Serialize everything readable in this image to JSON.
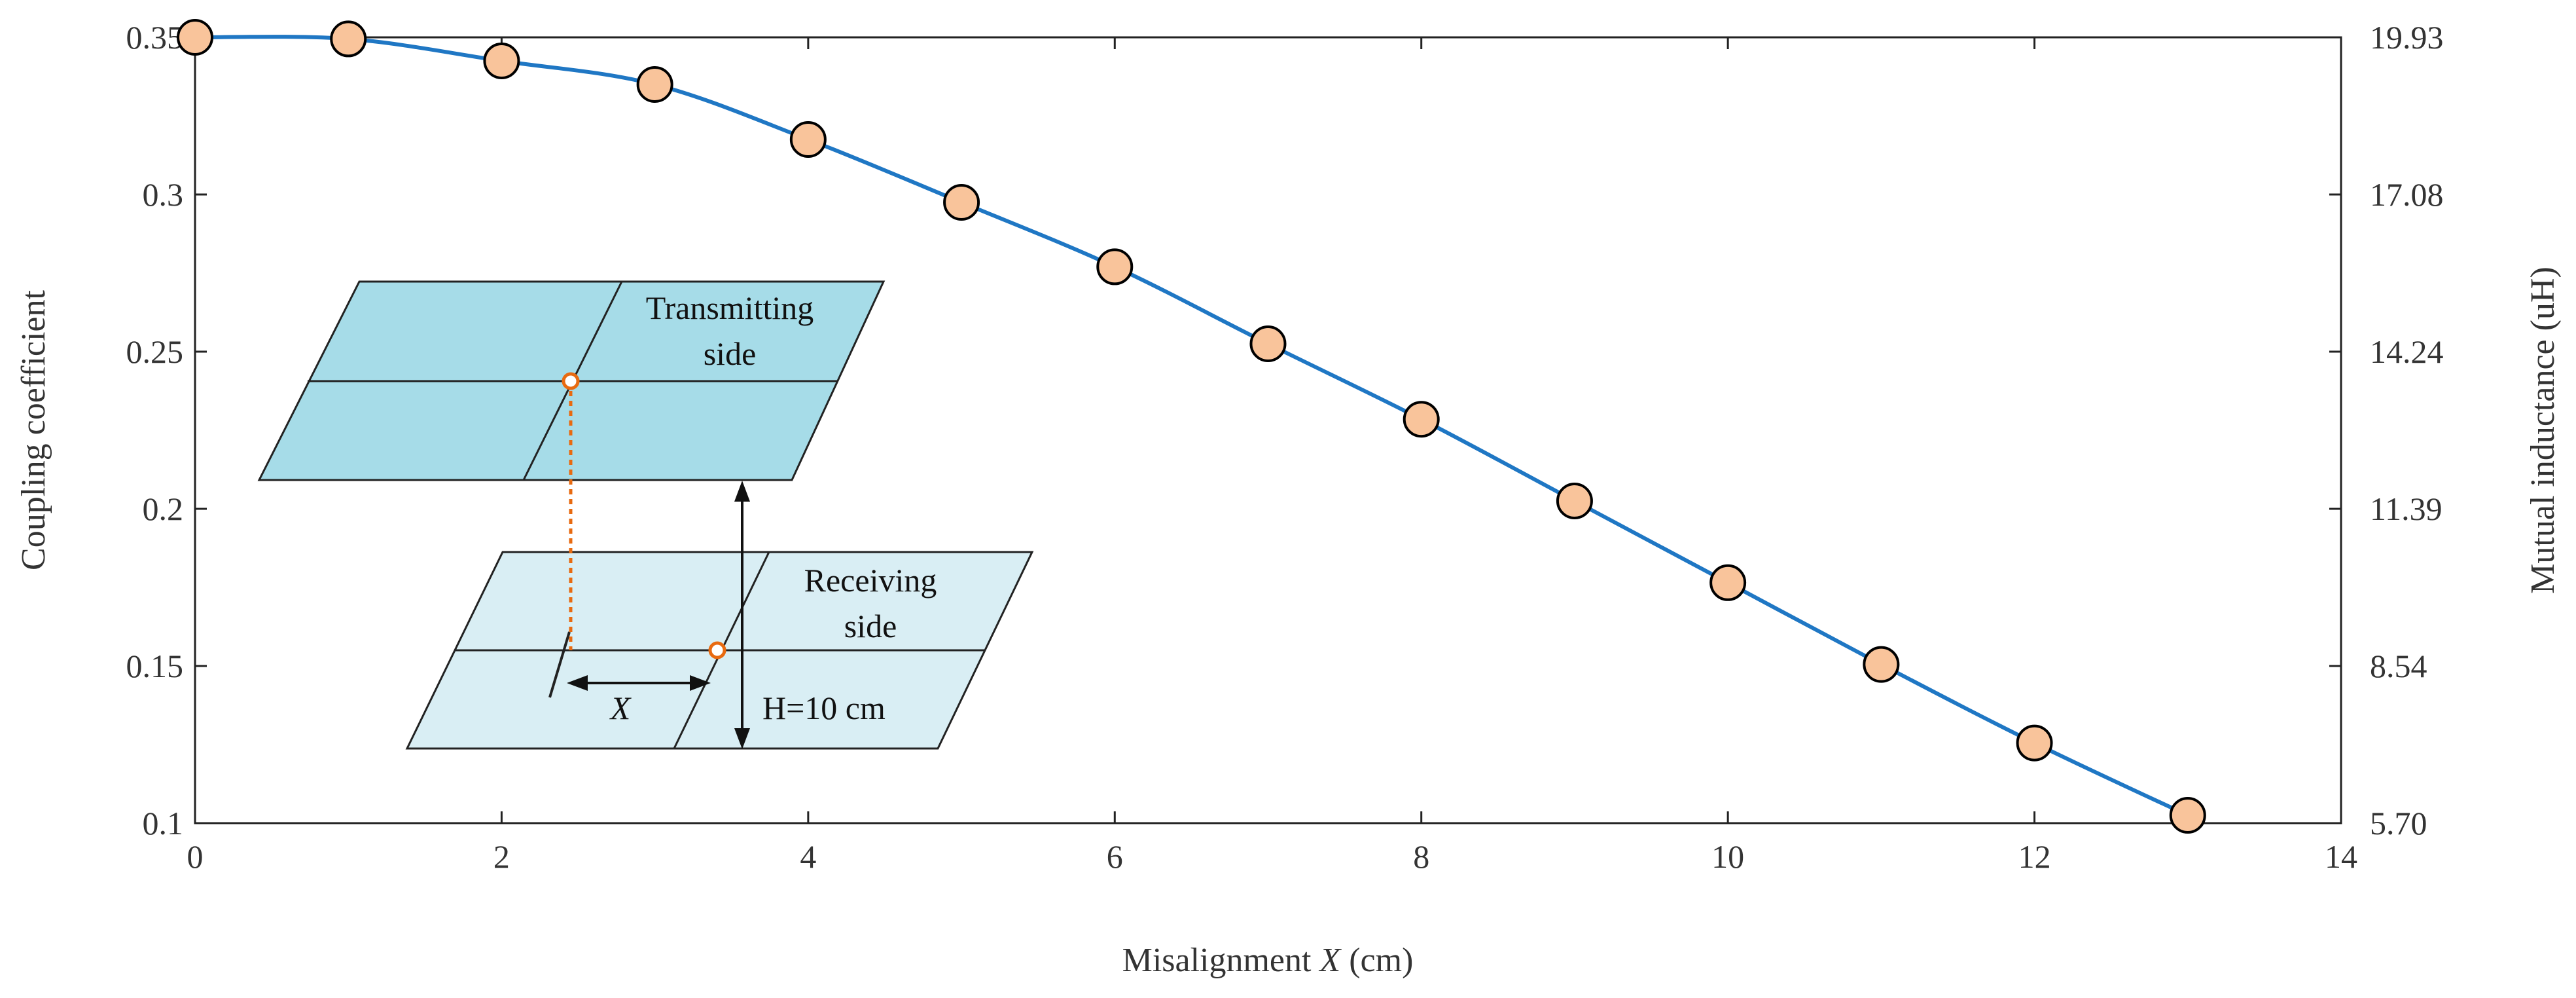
{
  "chart_data": {
    "type": "line",
    "title": "",
    "xlabel_prefix": "Misalignment ",
    "xlabel_var": "X",
    "xlabel_suffix": " (cm)",
    "ylabel": "Coupling coefficient",
    "y2label": "Mutual inductance (uH)",
    "xlim": [
      0,
      14
    ],
    "ylim": [
      0.1,
      0.35
    ],
    "xticks": [
      0,
      2,
      4,
      6,
      8,
      10,
      12,
      14
    ],
    "xtick_labels": [
      "0",
      "2",
      "4",
      "6",
      "8",
      "10",
      "12",
      "14"
    ],
    "yticks": [
      0.1,
      0.15,
      0.2,
      0.25,
      0.3,
      0.35
    ],
    "ytick_labels": [
      "0.1",
      "0.15",
      "0.2",
      "0.25",
      "0.3",
      "0.35"
    ],
    "y2tick_labels": [
      "5.70",
      "8.54",
      "11.39",
      "14.24",
      "17.08",
      "19.93"
    ],
    "grid": false,
    "series": [
      {
        "name": "Coupling coefficient",
        "x": [
          0,
          1,
          2,
          3,
          4,
          5,
          6,
          7,
          8,
          9,
          10,
          11,
          12,
          13
        ],
        "values": [
          0.35,
          0.3495,
          0.3425,
          0.335,
          0.3175,
          0.2975,
          0.277,
          0.2525,
          0.2285,
          0.2025,
          0.1765,
          0.1505,
          0.1255,
          0.1025
        ],
        "line_color": "#1f77c4",
        "marker_fill": "#f9c49b",
        "marker_edge": "#000000"
      }
    ],
    "inset": {
      "transmitting_label_line1": "Transmitting",
      "transmitting_label_line2": "side",
      "receiving_label_line1": "Receiving",
      "receiving_label_line2": "side",
      "offset_label": "X",
      "height_label": "H=10 cm",
      "tx_color": "#a6dce8",
      "rx_color": "#d9eef4",
      "marker_color": "#e86a10"
    }
  }
}
